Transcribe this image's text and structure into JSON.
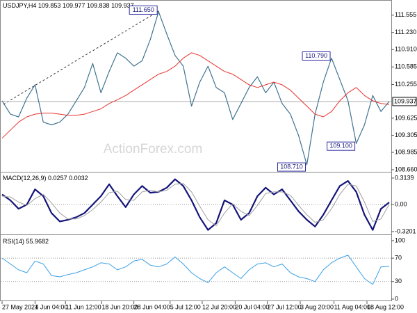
{
  "chart_data": [
    {
      "type": "line",
      "symbol": "USDJPY,H4",
      "ohlc": [
        109.853,
        109.977,
        109.838,
        109.937
      ],
      "watermark": "ActionForex.com",
      "ylim": [
        108.62,
        111.8
      ],
      "yticks": [
        {
          "value": 108.66,
          "label": "108.660"
        },
        108.985,
        109.305,
        109.625,
        {
          "value": 110.255,
          "label": "110.255"
        },
        110.585,
        {
          "value": 110.91,
          "label": "110.910"
        },
        {
          "value": 111.23,
          "label": "111.230"
        },
        111.555
      ],
      "series": [
        {
          "color": "#3f7391",
          "values": [
            109.95,
            109.7,
            109.65,
            110.0,
            110.25,
            109.55,
            109.5,
            109.55,
            109.7,
            109.95,
            110.2,
            110.65,
            110.1,
            110.5,
            110.85,
            110.75,
            110.6,
            110.7,
            111.1,
            111.62,
            111.2,
            110.8,
            110.6,
            109.85,
            110.3,
            110.6,
            110.2,
            110.1,
            109.6,
            109.9,
            110.2,
            110.4,
            110.1,
            110.3,
            109.9,
            109.7,
            109.3,
            108.75,
            109.7,
            110.3,
            110.75,
            110.35,
            109.95,
            109.15,
            109.5,
            110.05,
            109.75,
            109.937
          ]
        },
        {
          "color": "#e8322e",
          "values": [
            109.25,
            109.4,
            109.55,
            109.65,
            109.7,
            109.72,
            109.72,
            109.7,
            109.68,
            109.68,
            109.7,
            109.75,
            109.8,
            109.9,
            109.97,
            110.05,
            110.15,
            110.25,
            110.35,
            110.45,
            110.5,
            110.6,
            110.75,
            110.85,
            110.8,
            110.7,
            110.6,
            110.5,
            110.45,
            110.35,
            110.25,
            110.2,
            110.25,
            110.3,
            110.25,
            110.15,
            110.0,
            109.85,
            109.7,
            109.65,
            109.75,
            109.95,
            110.1,
            110.2,
            110.05,
            109.95,
            109.9,
            109.88
          ]
        }
      ],
      "annotations": [
        {
          "value": 111.65,
          "label": "111.650",
          "x": 19
        },
        {
          "value": 110.79,
          "label": "110.790",
          "x": 40
        },
        {
          "value": 109.1,
          "label": "109.100",
          "x": 43
        },
        {
          "value": 108.71,
          "label": "108.710",
          "x": 37
        }
      ]
    },
    {
      "type": "line",
      "title": "MACD(12,26,9)",
      "ylim": [
        -0.353,
        0.363
      ],
      "yticks": [
        -0.3201,
        {
          "value": 0,
          "label": "0.00"
        },
        0.3139
      ],
      "levels": [
        0
      ],
      "series": [
        {
          "color": "#14147a",
          "values": [
            0.12,
            0.05,
            -0.05,
            0.0,
            0.18,
            0.1,
            -0.1,
            -0.2,
            -0.18,
            -0.15,
            -0.1,
            0.0,
            0.1,
            0.24,
            0.1,
            -0.03,
            0.12,
            0.22,
            0.14,
            0.15,
            0.2,
            0.3,
            0.22,
            0.05,
            -0.15,
            -0.3,
            -0.22,
            0.05,
            0.0,
            -0.18,
            -0.1,
            0.1,
            0.2,
            0.12,
            0.18,
            0.05,
            -0.08,
            -0.18,
            -0.26,
            -0.12,
            0.05,
            0.22,
            0.28,
            0.15,
            -0.12,
            -0.3,
            -0.05,
            0.0257
          ]
        },
        {
          "color": "#a0a0a0",
          "values": [
            0.1,
            0.09,
            0.03,
            -0.01,
            0.07,
            0.12,
            0.02,
            -0.1,
            -0.17,
            -0.17,
            -0.13,
            -0.06,
            0.03,
            0.14,
            0.16,
            0.06,
            0.05,
            0.15,
            0.17,
            0.15,
            0.17,
            0.24,
            0.25,
            0.15,
            -0.02,
            -0.18,
            -0.25,
            -0.1,
            0.01,
            -0.08,
            -0.13,
            -0.01,
            0.13,
            0.15,
            0.15,
            0.11,
            -0.01,
            -0.12,
            -0.21,
            -0.18,
            -0.05,
            0.12,
            0.24,
            0.22,
            0.03,
            -0.2,
            -0.17,
            0.0032
          ]
        }
      ]
    },
    {
      "type": "line",
      "title": "RSI(14)",
      "ylim": [
        -2.4,
        107
      ],
      "yticks": [
        0,
        30,
        70,
        100
      ],
      "levels": [
        30,
        70
      ],
      "series": [
        {
          "color": "#3aa0e6",
          "values": [
            70,
            60,
            50,
            45,
            65,
            60,
            40,
            38,
            42,
            45,
            50,
            55,
            62,
            60,
            50,
            55,
            65,
            68,
            58,
            55,
            60,
            72,
            60,
            45,
            35,
            28,
            45,
            55,
            45,
            35,
            50,
            60,
            62,
            55,
            60,
            45,
            38,
            35,
            30,
            50,
            62,
            70,
            75,
            55,
            35,
            25,
            55,
            55.9682
          ]
        }
      ],
      "xlim": [
        0,
        47
      ],
      "xticks": [
        {
          "value": 0,
          "label": "27 May 2021"
        },
        {
          "value": 4,
          "label": "4 Jun 04:00"
        },
        {
          "value": 7.7,
          "label": "11 Jun 12:00"
        },
        {
          "value": 12.1,
          "label": "18 Jun 20:00"
        },
        {
          "value": 16,
          "label": "28 Jun 04:00"
        },
        {
          "value": 20.4,
          "label": "5 Jul 12:00"
        },
        {
          "value": 24.3,
          "label": "12 Jul 20:00"
        },
        {
          "value": 28.3,
          "label": "20 Jul 04:00"
        },
        {
          "value": 32.2,
          "label": "27 Jul 12:00"
        },
        {
          "value": 36.2,
          "label": "3 Aug 20:00"
        },
        {
          "value": 40.3,
          "label": "11 Aug 04:00"
        },
        {
          "value": 44.3,
          "label": "18 Aug 12:00"
        }
      ]
    }
  ]
}
